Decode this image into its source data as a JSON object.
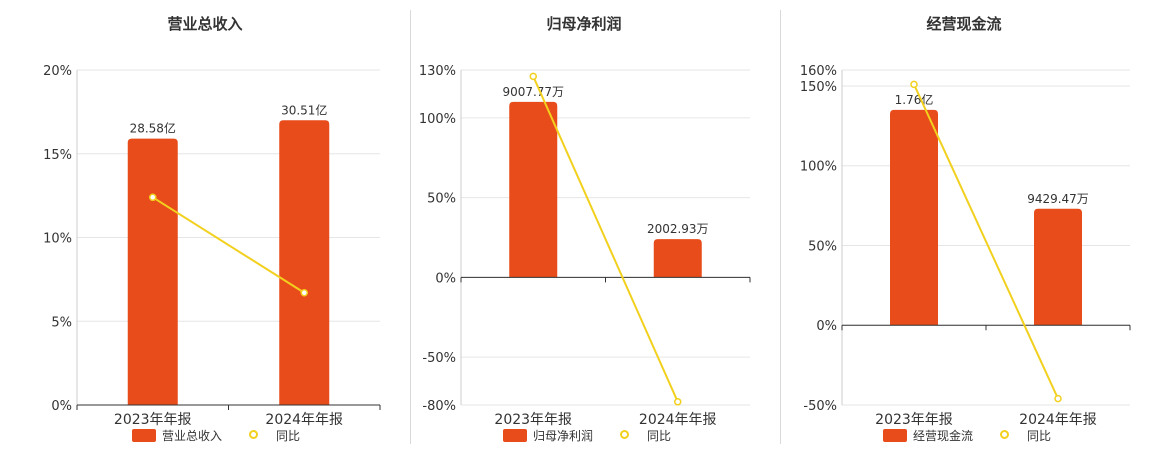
{
  "colors": {
    "bar": "#e84c1a",
    "line": "#f2d01e",
    "axis": "#333333",
    "grid": "#e6e6e6",
    "text": "#333333"
  },
  "chart_data": [
    {
      "type": "bar",
      "title": "营业总收入",
      "categories": [
        "2023年年报",
        "2024年年报"
      ],
      "yaxis": {
        "ticks": [
          "0%",
          "5%",
          "10%",
          "15%",
          "20%"
        ],
        "tick_values": [
          0,
          5,
          10,
          15,
          20
        ],
        "ylim": [
          0,
          20
        ]
      },
      "series": [
        {
          "name": "营业总收入",
          "kind": "bar",
          "values": [
            15.9,
            17.0
          ],
          "labels": [
            "28.58亿",
            "30.51亿"
          ]
        },
        {
          "name": "同比",
          "kind": "line",
          "values": [
            12.4,
            6.7
          ]
        }
      ],
      "legend": [
        "营业总收入",
        "同比"
      ]
    },
    {
      "type": "bar",
      "title": "归母净利润",
      "categories": [
        "2023年年报",
        "2024年年报"
      ],
      "yaxis": {
        "ticks": [
          "-80%",
          "-50%",
          "0%",
          "50%",
          "100%",
          "130%"
        ],
        "tick_values": [
          -80,
          -50,
          0,
          50,
          100,
          130
        ],
        "ylim": [
          -80,
          130
        ]
      },
      "series": [
        {
          "name": "归母净利润",
          "kind": "bar",
          "values": [
            110,
            24
          ],
          "labels": [
            "9007.77万",
            "2002.93万"
          ]
        },
        {
          "name": "同比",
          "kind": "line",
          "values": [
            126,
            -78
          ]
        }
      ],
      "legend": [
        "归母净利润",
        "同比"
      ]
    },
    {
      "type": "bar",
      "title": "经营现金流",
      "categories": [
        "2023年年报",
        "2024年年报"
      ],
      "yaxis": {
        "ticks": [
          "-50%",
          "0%",
          "50%",
          "100%",
          "150%",
          "160%"
        ],
        "tick_values": [
          -50,
          0,
          50,
          100,
          150,
          160
        ],
        "ylim": [
          -50,
          160
        ]
      },
      "series": [
        {
          "name": "经营现金流",
          "kind": "bar",
          "values": [
            135,
            73
          ],
          "labels": [
            "1.76亿",
            "9429.47万"
          ]
        },
        {
          "name": "同比",
          "kind": "line",
          "values": [
            151,
            -46
          ]
        }
      ],
      "legend": [
        "经营现金流",
        "同比"
      ]
    }
  ]
}
